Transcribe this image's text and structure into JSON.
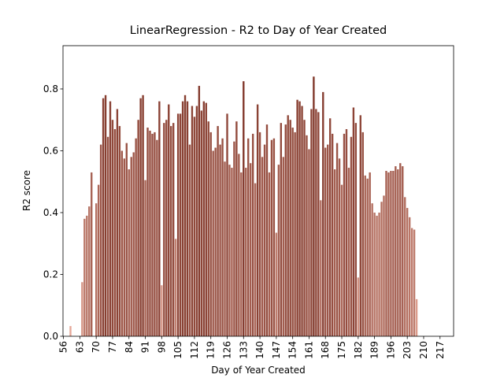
{
  "chart_data": {
    "type": "bar",
    "title": "LinearRegression - R2 to Day of Year Created",
    "x_label": "Day of Year Created",
    "y_label": "R2 score",
    "x": [
      59,
      64,
      65,
      66,
      67,
      68,
      70,
      71,
      72,
      73,
      74,
      75,
      76,
      77,
      78,
      79,
      80,
      81,
      82,
      83,
      84,
      85,
      86,
      87,
      88,
      89,
      90,
      91,
      92,
      93,
      94,
      95,
      96,
      97,
      98,
      99,
      100,
      101,
      102,
      103,
      104,
      105,
      106,
      107,
      108,
      109,
      110,
      111,
      112,
      113,
      114,
      115,
      116,
      117,
      118,
      119,
      120,
      121,
      122,
      123,
      124,
      125,
      126,
      127,
      128,
      129,
      130,
      131,
      132,
      133,
      134,
      135,
      136,
      137,
      138,
      139,
      140,
      141,
      142,
      143,
      144,
      145,
      146,
      147,
      148,
      149,
      150,
      151,
      152,
      153,
      154,
      155,
      156,
      157,
      158,
      159,
      160,
      161,
      162,
      163,
      164,
      165,
      166,
      167,
      168,
      169,
      170,
      171,
      172,
      173,
      174,
      175,
      176,
      177,
      178,
      179,
      180,
      181,
      182,
      183,
      184,
      185,
      186,
      187,
      188,
      189,
      190,
      191,
      192,
      193,
      194,
      195,
      196,
      197,
      198,
      199,
      200,
      201,
      202,
      203,
      204,
      205,
      206,
      207
    ],
    "values": [
      0.033,
      0.175,
      0.38,
      0.39,
      0.42,
      0.53,
      0.43,
      0.49,
      0.62,
      0.77,
      0.78,
      0.645,
      0.76,
      0.7,
      0.67,
      0.735,
      0.68,
      0.6,
      0.575,
      0.625,
      0.54,
      0.58,
      0.595,
      0.64,
      0.7,
      0.77,
      0.78,
      0.505,
      0.675,
      0.665,
      0.655,
      0.66,
      0.635,
      0.76,
      0.165,
      0.69,
      0.7,
      0.75,
      0.68,
      0.69,
      0.315,
      0.72,
      0.72,
      0.76,
      0.78,
      0.76,
      0.62,
      0.745,
      0.71,
      0.745,
      0.81,
      0.73,
      0.76,
      0.755,
      0.695,
      0.66,
      0.6,
      0.61,
      0.68,
      0.62,
      0.64,
      0.565,
      0.72,
      0.555,
      0.545,
      0.63,
      0.695,
      0.59,
      0.53,
      0.825,
      0.545,
      0.64,
      0.56,
      0.655,
      0.495,
      0.75,
      0.66,
      0.58,
      0.62,
      0.685,
      0.53,
      0.635,
      0.64,
      0.335,
      0.555,
      0.69,
      0.58,
      0.685,
      0.715,
      0.7,
      0.675,
      0.66,
      0.765,
      0.76,
      0.745,
      0.7,
      0.65,
      0.605,
      0.735,
      0.84,
      0.735,
      0.725,
      0.44,
      0.79,
      0.61,
      0.62,
      0.705,
      0.655,
      0.54,
      0.625,
      0.575,
      0.49,
      0.655,
      0.67,
      0.545,
      0.645,
      0.74,
      0.69,
      0.19,
      0.715,
      0.66,
      0.52,
      0.51,
      0.53,
      0.43,
      0.4,
      0.39,
      0.4,
      0.435,
      0.455,
      0.535,
      0.53,
      0.535,
      0.535,
      0.55,
      0.54,
      0.56,
      0.55,
      0.45,
      0.415,
      0.385,
      0.35,
      0.345,
      0.12
    ],
    "color_low": "#e6a898",
    "color_high": "#7f3528",
    "xlim": [
      55.8,
      222.8
    ],
    "ylim": [
      0,
      0.94
    ],
    "xticks": [
      56,
      63,
      70,
      77,
      84,
      91,
      98,
      105,
      112,
      119,
      126,
      133,
      140,
      147,
      154,
      161,
      168,
      175,
      182,
      189,
      196,
      203,
      210,
      217
    ],
    "yticks": [
      {
        "value": 0,
        "label": "0.0"
      },
      {
        "value": 0.2,
        "label": "0.2"
      },
      {
        "value": 0.4,
        "label": "0.4"
      },
      {
        "value": 0.6,
        "label": "0.6"
      },
      {
        "value": 0.8,
        "label": "0.8"
      }
    ]
  }
}
